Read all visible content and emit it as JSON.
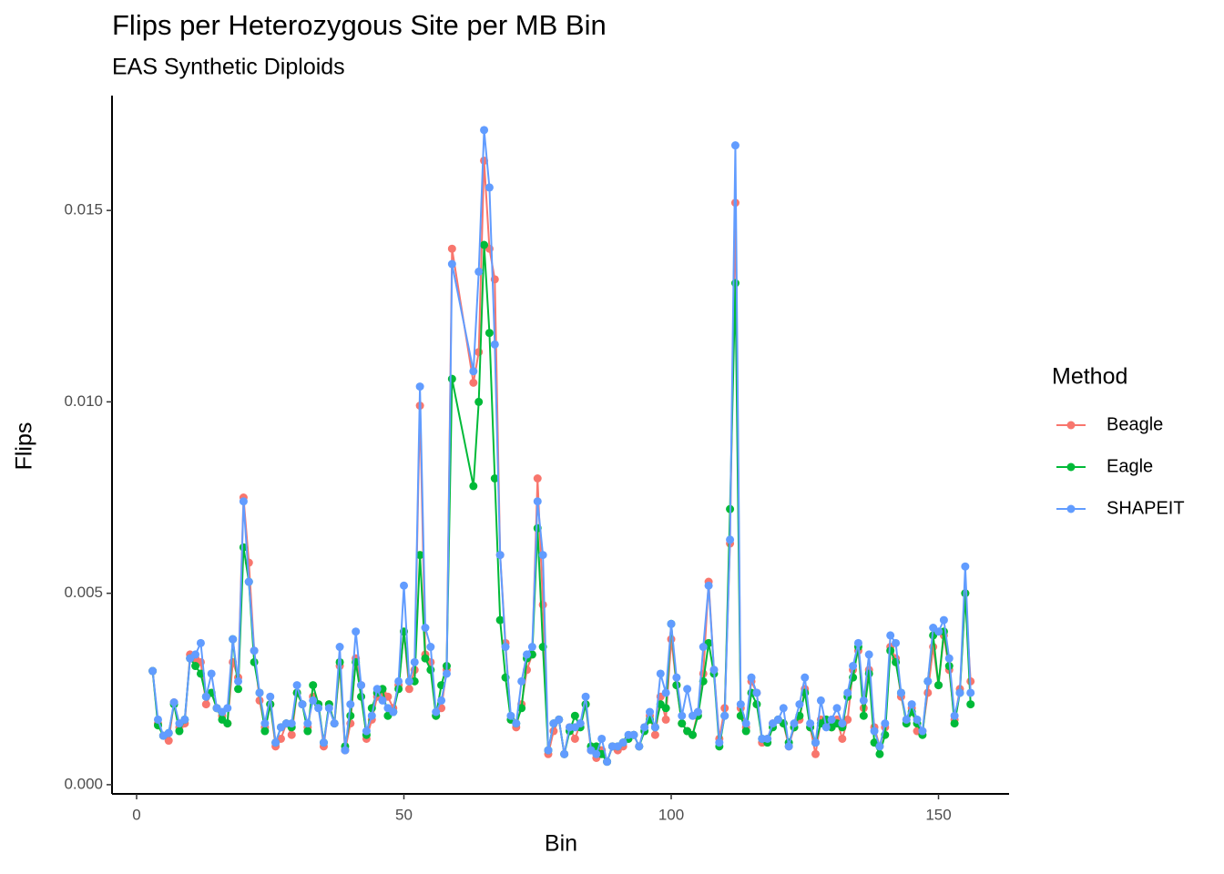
{
  "chart_data": {
    "type": "line",
    "title": "Flips per Heterozygous Site per MB Bin",
    "subtitle": "EAS Synthetic Diploids",
    "x_label": "Bin",
    "y_label": "Flips",
    "legend_title": "Method",
    "legend_position": "right",
    "xlim": [
      -4.6,
      163.2
    ],
    "ylim": [
      -0.00024,
      0.018
    ],
    "xticks": [
      0,
      50,
      100,
      150
    ],
    "yticks": [
      {
        "value": 0,
        "label": "0.000"
      },
      {
        "value": 0.005,
        "label": "0.005"
      },
      {
        "value": 0.01,
        "label": "0.010"
      },
      {
        "value": 0.015,
        "label": "0.015"
      }
    ],
    "x": [
      3,
      4,
      5,
      6,
      7,
      8,
      9,
      10,
      11,
      12,
      13,
      14,
      15,
      16,
      17,
      18,
      19,
      20,
      21,
      22,
      23,
      24,
      25,
      26,
      27,
      28,
      29,
      30,
      31,
      32,
      33,
      34,
      35,
      36,
      37,
      38,
      39,
      40,
      41,
      42,
      43,
      44,
      45,
      46,
      47,
      48,
      49,
      50,
      51,
      52,
      53,
      54,
      55,
      56,
      57,
      58,
      59,
      63,
      64,
      65,
      66,
      67,
      68,
      69,
      70,
      71,
      72,
      73,
      74,
      75,
      76,
      77,
      78,
      79,
      80,
      81,
      82,
      83,
      84,
      85,
      86,
      87,
      88,
      89,
      90,
      91,
      92,
      93,
      94,
      95,
      96,
      97,
      98,
      99,
      100,
      101,
      102,
      103,
      104,
      105,
      106,
      107,
      108,
      109,
      110,
      111,
      112,
      113,
      114,
      115,
      116,
      117,
      118,
      119,
      120,
      121,
      122,
      123,
      124,
      125,
      126,
      127,
      128,
      129,
      130,
      131,
      132,
      133,
      134,
      135,
      136,
      137,
      138,
      139,
      140,
      141,
      142,
      143,
      144,
      145,
      146,
      147,
      148,
      149,
      150,
      151,
      152,
      153,
      154,
      155,
      156
    ],
    "series": [
      {
        "name": "Beagle",
        "color": "#F8766D",
        "values": [
          0.00297,
          0.0016,
          0.00128,
          0.00115,
          0.00215,
          0.0015,
          0.0016,
          0.0034,
          0.0033,
          0.0032,
          0.0021,
          0.0024,
          0.002,
          0.0018,
          0.0016,
          0.0032,
          0.0028,
          0.0075,
          0.0058,
          0.0035,
          0.0022,
          0.0015,
          0.0021,
          0.001,
          0.0012,
          0.0016,
          0.0013,
          0.0024,
          0.0021,
          0.0015,
          0.0023,
          0.0021,
          0.001,
          0.0021,
          0.0016,
          0.0031,
          0.0009,
          0.0016,
          0.0033,
          0.0026,
          0.0012,
          0.0017,
          0.0023,
          0.0024,
          0.0023,
          0.002,
          0.0026,
          0.004,
          0.0025,
          0.003,
          0.0099,
          0.0034,
          0.0032,
          0.0018,
          0.002,
          0.003,
          0.014,
          0.0105,
          0.0113,
          0.0163,
          0.014,
          0.0132,
          0.006,
          0.0037,
          0.0017,
          0.0015,
          0.0021,
          0.003,
          0.0034,
          0.008,
          0.0047,
          0.0008,
          0.0014,
          0.0017,
          0.0008,
          0.0015,
          0.0012,
          0.0016,
          0.0021,
          0.0009,
          0.0007,
          0.0009,
          0.0006,
          0.001,
          0.0009,
          0.001,
          0.0012,
          0.0013,
          0.001,
          0.0015,
          0.0018,
          0.0013,
          0.0023,
          0.0017,
          0.0038,
          0.0026,
          0.0016,
          0.0014,
          0.0013,
          0.0019,
          0.0029,
          0.0053,
          0.003,
          0.0012,
          0.002,
          0.0063,
          0.0152,
          0.002,
          0.0015,
          0.0027,
          0.0024,
          0.0011,
          0.0012,
          0.0016,
          0.0017,
          0.0016,
          0.001,
          0.0015,
          0.0017,
          0.0025,
          0.0015,
          0.0008,
          0.0017,
          0.0016,
          0.0015,
          0.0017,
          0.0012,
          0.0017,
          0.003,
          0.0035,
          0.002,
          0.003,
          0.0015,
          0.001,
          0.0015,
          0.0036,
          0.0033,
          0.0023,
          0.0017,
          0.002,
          0.0014,
          0.0014,
          0.0024,
          0.0036,
          0.0026,
          0.0039,
          0.003,
          0.0017,
          0.0025,
          0.005,
          0.0027
        ]
      },
      {
        "name": "Eagle",
        "color": "#00BA38",
        "values": [
          0.00297,
          0.00155,
          0.00128,
          0.00135,
          0.0021,
          0.0014,
          0.0017,
          0.0033,
          0.0031,
          0.0029,
          0.0023,
          0.0024,
          0.002,
          0.0017,
          0.0016,
          0.0038,
          0.0025,
          0.0062,
          0.0053,
          0.0032,
          0.0024,
          0.0014,
          0.0021,
          0.0011,
          0.0015,
          0.0016,
          0.0015,
          0.0024,
          0.0021,
          0.0014,
          0.0026,
          0.0021,
          0.0011,
          0.0021,
          0.0016,
          0.0032,
          0.001,
          0.0018,
          0.0032,
          0.0023,
          0.0013,
          0.002,
          0.0024,
          0.0025,
          0.0018,
          0.0019,
          0.0025,
          0.004,
          0.0027,
          0.0027,
          0.006,
          0.0033,
          0.003,
          0.0018,
          0.0026,
          0.0031,
          0.0106,
          0.0078,
          0.01,
          0.0141,
          0.0118,
          0.008,
          0.0043,
          0.0028,
          0.0017,
          0.0016,
          0.002,
          0.0033,
          0.0034,
          0.0067,
          0.0036,
          0.0009,
          0.0016,
          0.0017,
          0.0008,
          0.0014,
          0.0018,
          0.0015,
          0.0021,
          0.001,
          0.001,
          0.0008,
          0.0006,
          0.001,
          0.001,
          0.0011,
          0.0012,
          0.0013,
          0.001,
          0.0014,
          0.0017,
          0.0015,
          0.0021,
          0.002,
          0.0042,
          0.0026,
          0.0016,
          0.0014,
          0.0013,
          0.0018,
          0.0027,
          0.0037,
          0.0029,
          0.001,
          0.0018,
          0.0072,
          0.0131,
          0.0018,
          0.0014,
          0.0024,
          0.0021,
          0.0012,
          0.0011,
          0.0015,
          0.0017,
          0.0016,
          0.0011,
          0.0015,
          0.0018,
          0.0024,
          0.0015,
          0.0011,
          0.0016,
          0.0017,
          0.0015,
          0.0016,
          0.0015,
          0.0023,
          0.0028,
          0.0036,
          0.0018,
          0.0029,
          0.0011,
          0.0008,
          0.0013,
          0.0035,
          0.0032,
          0.0024,
          0.0016,
          0.0019,
          0.0016,
          0.0013,
          0.0027,
          0.0039,
          0.0026,
          0.004,
          0.0031,
          0.0016,
          0.0024,
          0.005,
          0.0021
        ]
      },
      {
        "name": "SHAPEIT",
        "color": "#619CFF",
        "values": [
          0.00297,
          0.0017,
          0.00128,
          0.00135,
          0.00215,
          0.0016,
          0.0017,
          0.0033,
          0.0034,
          0.0037,
          0.0023,
          0.0029,
          0.002,
          0.0019,
          0.002,
          0.0038,
          0.0027,
          0.0074,
          0.0053,
          0.0035,
          0.0024,
          0.0016,
          0.0023,
          0.0011,
          0.0015,
          0.0016,
          0.0016,
          0.0026,
          0.0021,
          0.0016,
          0.0022,
          0.002,
          0.0011,
          0.002,
          0.0016,
          0.0036,
          0.0009,
          0.0021,
          0.004,
          0.0026,
          0.0014,
          0.0018,
          0.0025,
          0.0022,
          0.002,
          0.0019,
          0.0027,
          0.0052,
          0.0027,
          0.0032,
          0.0104,
          0.0041,
          0.0036,
          0.0019,
          0.0022,
          0.0029,
          0.0136,
          0.0108,
          0.0134,
          0.0171,
          0.0156,
          0.0115,
          0.006,
          0.0036,
          0.0018,
          0.0016,
          0.0027,
          0.0034,
          0.0036,
          0.0074,
          0.006,
          0.0009,
          0.0016,
          0.0017,
          0.0008,
          0.0015,
          0.0015,
          0.0016,
          0.0023,
          0.0009,
          0.0008,
          0.0012,
          0.0006,
          0.001,
          0.001,
          0.0011,
          0.0013,
          0.0013,
          0.001,
          0.0015,
          0.0019,
          0.0015,
          0.0029,
          0.0024,
          0.0042,
          0.0028,
          0.0018,
          0.0025,
          0.0018,
          0.0019,
          0.0036,
          0.0052,
          0.003,
          0.0011,
          0.0018,
          0.0064,
          0.0167,
          0.0021,
          0.0016,
          0.0028,
          0.0024,
          0.0012,
          0.0012,
          0.0016,
          0.0017,
          0.002,
          0.001,
          0.0016,
          0.0021,
          0.0028,
          0.0016,
          0.0011,
          0.0022,
          0.0015,
          0.0017,
          0.002,
          0.0016,
          0.0024,
          0.0031,
          0.0037,
          0.0022,
          0.0034,
          0.0014,
          0.001,
          0.0016,
          0.0039,
          0.0037,
          0.0024,
          0.0017,
          0.0021,
          0.0017,
          0.0014,
          0.0027,
          0.0041,
          0.004,
          0.0043,
          0.0033,
          0.0018,
          0.0024,
          0.0057,
          0.0024
        ]
      }
    ]
  }
}
